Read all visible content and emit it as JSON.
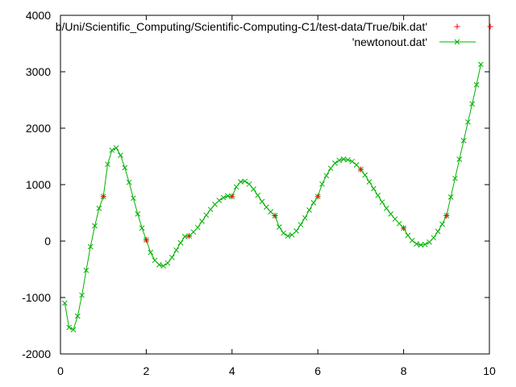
{
  "chart_data": {
    "type": "scatter",
    "title": "",
    "xlabel": "",
    "ylabel": "",
    "xlim": [
      0,
      10
    ],
    "ylim": [
      -2000,
      4000
    ],
    "x_ticks": [
      "0",
      "2",
      "4",
      "6",
      "8",
      "10"
    ],
    "y_ticks": [
      "-2000",
      "-1000",
      "0",
      "1000",
      "2000",
      "3000",
      "4000"
    ],
    "grid": false,
    "legend_position": "top-right",
    "series": [
      {
        "name": "b/Uni/Scientific_Computing/Scientific-Computing-C1/test-data/True/bik.dat'",
        "style": "points",
        "marker": "plus",
        "color": "#ff0000",
        "x": [
          1,
          2,
          3,
          4,
          5,
          6,
          7,
          8,
          9
        ],
        "y": [
          790,
          20,
          90,
          790,
          450,
          790,
          1270,
          230,
          450
        ]
      },
      {
        "name": "'newtonout.dat'",
        "style": "linespoints",
        "marker": "cross",
        "color": "#00b000",
        "x": [
          0.1,
          0.2,
          0.3,
          0.4,
          0.5,
          0.6,
          0.7,
          0.8,
          0.9,
          1.0,
          1.1,
          1.2,
          1.3,
          1.4,
          1.5,
          1.6,
          1.7,
          1.8,
          1.9,
          2.0,
          2.1,
          2.2,
          2.3,
          2.4,
          2.5,
          2.6,
          2.7,
          2.8,
          2.9,
          3.0,
          3.1,
          3.2,
          3.3,
          3.4,
          3.5,
          3.6,
          3.7,
          3.8,
          3.9,
          4.0,
          4.1,
          4.2,
          4.3,
          4.4,
          4.5,
          4.6,
          4.7,
          4.8,
          4.9,
          5.0,
          5.1,
          5.2,
          5.3,
          5.4,
          5.5,
          5.6,
          5.7,
          5.8,
          5.9,
          6.0,
          6.1,
          6.2,
          6.3,
          6.4,
          6.5,
          6.6,
          6.7,
          6.8,
          6.9,
          7.0,
          7.1,
          7.2,
          7.3,
          7.4,
          7.5,
          7.6,
          7.7,
          7.8,
          7.9,
          8.0,
          8.1,
          8.2,
          8.3,
          8.4,
          8.5,
          8.6,
          8.7,
          8.8,
          8.9,
          9.0,
          9.1,
          9.2,
          9.3,
          9.4,
          9.5,
          9.6,
          9.7,
          9.8
        ],
        "y": [
          -1100,
          -1530,
          -1570,
          -1330,
          -960,
          -520,
          -100,
          270,
          580,
          790,
          1360,
          1610,
          1650,
          1520,
          1300,
          1040,
          760,
          480,
          230,
          20,
          -200,
          -340,
          -420,
          -440,
          -390,
          -290,
          -160,
          -30,
          80,
          90,
          160,
          240,
          350,
          460,
          560,
          650,
          720,
          770,
          800,
          790,
          960,
          1050,
          1060,
          1010,
          920,
          810,
          700,
          600,
          520,
          450,
          250,
          140,
          90,
          110,
          180,
          290,
          410,
          550,
          680,
          790,
          1010,
          1160,
          1290,
          1380,
          1430,
          1450,
          1440,
          1410,
          1350,
          1270,
          1170,
          1050,
          930,
          810,
          690,
          580,
          480,
          390,
          310,
          230,
          100,
          10,
          -50,
          -70,
          -60,
          -20,
          60,
          170,
          300,
          450,
          780,
          1110,
          1450,
          1780,
          2110,
          2430,
          2770,
          3130
        ]
      }
    ]
  }
}
